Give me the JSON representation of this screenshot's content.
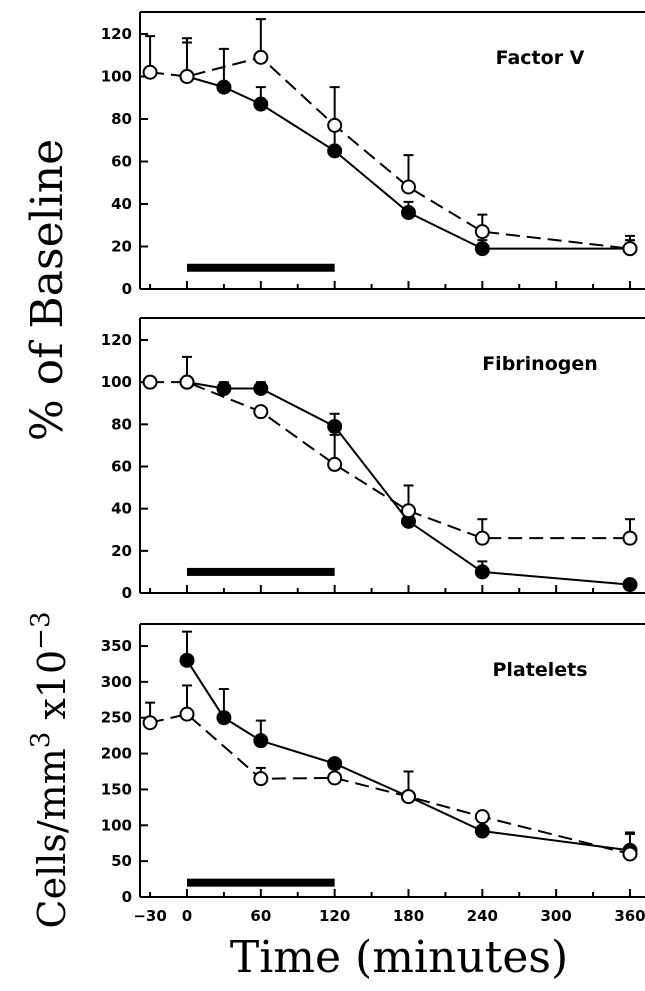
{
  "chart_data": [
    {
      "type": "line",
      "title": "Factor V",
      "ylabel": "% of Baseline",
      "xlabel": "Time (minutes)",
      "xlim": [
        -45,
        405
      ],
      "ylim": [
        0,
        120
      ],
      "yticks": [
        0,
        20,
        40,
        60,
        80,
        100,
        120
      ],
      "xticks": [
        0,
        60,
        120,
        180,
        240,
        300,
        360
      ],
      "infusion_bar": [
        0,
        120
      ],
      "series": [
        {
          "marker": "filled-circle",
          "line": "solid",
          "x": [
            0,
            30,
            60,
            120,
            180,
            240,
            360
          ],
          "y": [
            100,
            95,
            87,
            65,
            36,
            19,
            19
          ],
          "err": [
            [
              0,
              16
            ],
            [
              30,
              18
            ],
            [
              60,
              8
            ],
            [
              120,
              10
            ],
            [
              180,
              5
            ],
            [
              240,
              4
            ],
            [
              360,
              6
            ]
          ]
        },
        {
          "marker": "open-circle",
          "line": "dashed",
          "x": [
            -30,
            0,
            60,
            120,
            180,
            240,
            360
          ],
          "y": [
            102,
            100,
            109,
            77,
            48,
            27,
            19
          ],
          "err": [
            [
              -30,
              17
            ],
            [
              0,
              18
            ],
            [
              60,
              18
            ],
            [
              120,
              18
            ],
            [
              180,
              15
            ],
            [
              240,
              8
            ],
            [
              360,
              4
            ]
          ]
        }
      ]
    },
    {
      "type": "line",
      "title": "Fibrinogen",
      "xlim": [
        -45,
        405
      ],
      "ylim": [
        0,
        120
      ],
      "yticks": [
        0,
        20,
        40,
        60,
        80,
        100,
        120
      ],
      "xticks": [
        0,
        60,
        120,
        180,
        240,
        300,
        360
      ],
      "infusion_bar": [
        0,
        120
      ],
      "series": [
        {
          "marker": "filled-circle",
          "line": "solid",
          "x": [
            0,
            30,
            60,
            120,
            180,
            240,
            360
          ],
          "y": [
            100,
            97,
            97,
            79,
            34,
            10,
            4
          ],
          "err": [
            [
              0,
              12
            ],
            [
              30,
              3
            ],
            [
              60,
              3
            ],
            [
              120,
              6
            ],
            [
              180,
              4
            ],
            [
              240,
              5
            ],
            [
              360,
              0
            ]
          ]
        },
        {
          "marker": "open-circle",
          "line": "dashed",
          "x": [
            -30,
            0,
            60,
            120,
            180,
            240,
            360
          ],
          "y": [
            100,
            100,
            86,
            61,
            39,
            26,
            26
          ],
          "err": [
            [
              -30,
              0
            ],
            [
              0,
              0
            ],
            [
              60,
              0
            ],
            [
              120,
              14
            ],
            [
              180,
              12
            ],
            [
              240,
              9
            ],
            [
              360,
              9
            ]
          ]
        }
      ]
    },
    {
      "type": "line",
      "title": "Platelets",
      "ylabel": "Cells/mm³ x10⁻³",
      "xlim": [
        -45,
        405
      ],
      "ylim": [
        0,
        375
      ],
      "yticks": [
        0,
        50,
        100,
        150,
        200,
        250,
        300,
        350
      ],
      "xticks": [
        -30,
        0,
        60,
        120,
        180,
        240,
        300,
        360
      ],
      "infusion_bar": [
        0,
        120
      ],
      "series": [
        {
          "marker": "filled-circle",
          "line": "solid",
          "x": [
            0,
            30,
            60,
            120,
            180,
            240,
            360
          ],
          "y": [
            330,
            250,
            218,
            186,
            140,
            92,
            65
          ],
          "err": [
            [
              0,
              40
            ],
            [
              30,
              40
            ],
            [
              60,
              28
            ],
            [
              120,
              5
            ],
            [
              180,
              35
            ],
            [
              240,
              25
            ],
            [
              360,
              25
            ]
          ]
        },
        {
          "marker": "open-circle",
          "line": "dashed",
          "x": [
            -30,
            0,
            60,
            120,
            180,
            240,
            360
          ],
          "y": [
            243,
            255,
            165,
            166,
            140,
            112,
            60
          ],
          "err": [
            [
              -30,
              28
            ],
            [
              0,
              40
            ],
            [
              60,
              15
            ],
            [
              120,
              5
            ],
            [
              180,
              0
            ],
            [
              240,
              0
            ],
            [
              360,
              28
            ]
          ]
        }
      ]
    }
  ],
  "labels": {
    "y_upper": "% of Baseline",
    "y_lower_main": "Cells/mm",
    "y_lower_sup": "3",
    "y_lower_mid": " x10",
    "y_lower_exp": "−3",
    "x_axis": "Time (minutes)"
  },
  "colors": {
    "ink": "#000000",
    "background": "#ffffff"
  }
}
